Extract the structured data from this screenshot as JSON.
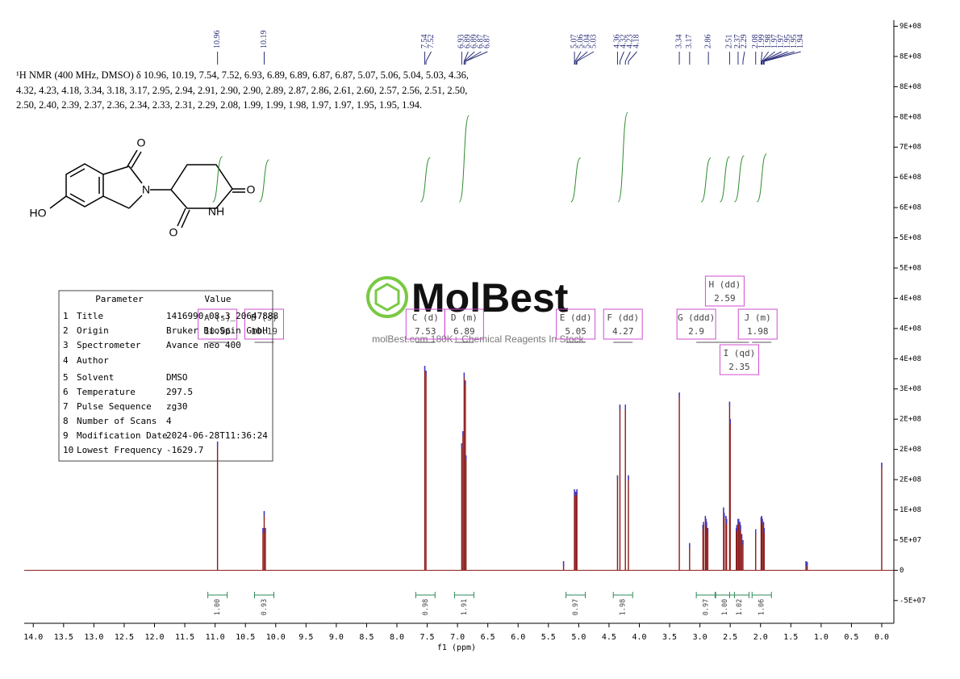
{
  "chart_data": {
    "type": "nmr",
    "header": "¹H NMR (400 MHz, DMSO) δ 10.96, 10.19, 7.54, 7.52, 6.93, 6.89, 6.89, 6.87, 6.87, 5.07, 5.06, 5.04, 5.03, 4.36, 4.32, 4.23, 4.18, 3.34, 3.18, 3.17, 2.95, 2.94, 2.91, 2.90, 2.90, 2.89, 2.87, 2.86, 2.61, 2.60, 2.57, 2.56, 2.51, 2.50, 2.50, 2.40, 2.39, 2.37, 2.36, 2.34, 2.33, 2.31, 2.29, 2.08, 1.99, 1.99, 1.98, 1.97, 1.97, 1.95, 1.95, 1.94.",
    "xlabel": "f1 (ppm)",
    "xlim": [
      14.15,
      -0.2
    ],
    "xticks": [
      {
        "value": 14,
        "label": "14.0"
      },
      13.5,
      {
        "value": 13,
        "label": "13.0"
      },
      12.5,
      {
        "value": 12,
        "label": "12.0"
      },
      11.5,
      {
        "value": 11,
        "label": "11.0"
      },
      10.5,
      {
        "value": 10,
        "label": "10.0"
      },
      9.5,
      {
        "value": 9,
        "label": "9.0"
      },
      8.5,
      {
        "value": 8,
        "label": "8.0"
      },
      7.5,
      {
        "value": 7,
        "label": "7.0"
      },
      6.5,
      {
        "value": 6,
        "label": "6.0"
      },
      5.5,
      {
        "value": 5,
        "label": "5.0"
      },
      4.5,
      {
        "value": 4,
        "label": "4.0"
      },
      3.5,
      {
        "value": 3,
        "label": "3.0"
      },
      2.5,
      {
        "value": 2,
        "label": "2.0"
      },
      1.5,
      {
        "value": 1,
        "label": "1.0"
      },
      0.5,
      {
        "value": 0,
        "label": "0.0"
      }
    ],
    "ylim": [
      -85000000,
      910000000
    ],
    "yticks": [
      {
        "value": 900000000,
        "label": "9E+08"
      },
      {
        "value": 850000000,
        "label": "8E+08"
      },
      {
        "value": 800000000,
        "label": "8E+08"
      },
      {
        "value": 750000000,
        "label": "8E+08"
      },
      {
        "value": 700000000,
        "label": "7E+08"
      },
      {
        "value": 650000000,
        "label": "6E+08"
      },
      {
        "value": 600000000,
        "label": "6E+08"
      },
      {
        "value": 550000000,
        "label": "5E+08"
      },
      {
        "value": 500000000,
        "label": "5E+08"
      },
      {
        "value": 450000000,
        "label": "4E+08"
      },
      {
        "value": 400000000,
        "label": "4E+08"
      },
      {
        "value": 350000000,
        "label": "4E+08"
      },
      {
        "value": 300000000,
        "label": "3E+08"
      },
      {
        "value": 250000000,
        "label": "2E+08"
      },
      {
        "value": 200000000,
        "label": "2E+08"
      },
      {
        "value": 150000000,
        "label": "2E+08"
      },
      {
        "value": 100000000,
        "label": "1E+08"
      },
      {
        "value": 50000000,
        "label": "5E+07"
      },
      0,
      {
        "value": -50000000,
        "label": "-5E+07"
      }
    ],
    "color": "#8b1a1a",
    "spectrum": {
      "x": [
        10.96,
        10.21,
        10.19,
        10.17,
        7.54,
        7.52,
        6.93,
        6.91,
        6.89,
        6.87,
        6.86,
        5.25,
        5.07,
        5.06,
        5.04,
        5.03,
        4.36,
        4.32,
        4.23,
        4.18,
        3.34,
        3.17,
        2.95,
        2.94,
        2.91,
        2.9,
        2.89,
        2.87,
        2.61,
        2.6,
        2.57,
        2.56,
        2.51,
        2.5,
        2.4,
        2.39,
        2.37,
        2.36,
        2.34,
        2.33,
        2.31,
        2.29,
        2.08,
        1.99,
        1.98,
        1.97,
        1.95,
        1.94,
        1.25,
        1.23,
        0.0
      ],
      "values": [
        213000000,
        70000000,
        98000000,
        70000000,
        338000000,
        330000000,
        210000000,
        230000000,
        327000000,
        314000000,
        190000000,
        15000000,
        134000000,
        130000000,
        130000000,
        134000000,
        157000000,
        274000000,
        274000000,
        157000000,
        294000000,
        45000000,
        75000000,
        80000000,
        90000000,
        85000000,
        80000000,
        70000000,
        104000000,
        95000000,
        90000000,
        85000000,
        279000000,
        250000000,
        70000000,
        75000000,
        85000000,
        85000000,
        80000000,
        75000000,
        60000000,
        50000000,
        68000000,
        88000000,
        90000000,
        85000000,
        80000000,
        70000000,
        15000000,
        14000000,
        178000000
      ]
    },
    "peak_labels": [
      10.96,
      10.19,
      7.54,
      7.52,
      6.93,
      6.89,
      6.89,
      6.87,
      6.87,
      5.07,
      5.06,
      5.04,
      5.03,
      4.36,
      4.32,
      4.23,
      4.18,
      3.34,
      3.17,
      2.86,
      2.51,
      2.37,
      2.29,
      2.08,
      1.99,
      1.98,
      1.97,
      1.97,
      1.95,
      1.95,
      1.94
    ],
    "multiplets": [
      {
        "name": "A (s)",
        "shift": 10.96,
        "integral": 1.0,
        "integral_label": "1.00"
      },
      {
        "name": "B (s)",
        "shift": 10.19,
        "integral": 0.93,
        "integral_label": "0.93"
      },
      {
        "name": "C (d)",
        "shift": 7.53,
        "integral": 0.98,
        "integral_label": "0.98"
      },
      {
        "name": "D (m)",
        "shift": 6.89,
        "integral": 1.91,
        "integral_label": "1.91"
      },
      {
        "name": "E (dd)",
        "shift": 5.05,
        "integral": 0.97,
        "integral_label": "0.97"
      },
      {
        "name": "F (dd)",
        "shift": 4.27,
        "integral": 1.98,
        "integral_label": "1.98"
      },
      {
        "name": "G (ddd)",
        "shift": 2.9,
        "integral": 0.97,
        "integral_label": "0.97"
      },
      {
        "name": "H (dd)",
        "shift": 2.59,
        "integral": 1.0,
        "integral_label": "1.00"
      },
      {
        "name": "I (qd)",
        "shift": 2.35,
        "integral": 1.02,
        "integral_label": "1.02"
      },
      {
        "name": "J (m)",
        "shift": 1.98,
        "integral": 1.06,
        "integral_label": "1.06"
      }
    ],
    "parameters": {
      "headers": [
        "Parameter",
        "Value"
      ],
      "rows": [
        [
          "1",
          "Title",
          "1416990-08-3_20647888"
        ],
        [
          "2",
          "Origin",
          "Bruker BioSpin GmbH"
        ],
        [
          "3",
          "Spectrometer",
          "Avance neo 400"
        ],
        [
          "4",
          "Author"
        ],
        [
          "5",
          "Solvent",
          "DMSO"
        ],
        [
          "6",
          "Temperature",
          "297.5"
        ],
        [
          "7",
          "Pulse Sequence",
          "zg30"
        ],
        [
          "8",
          "Number of Scans",
          "4"
        ],
        [
          "9",
          "Modification Date",
          "2024-06-28T11:36:24"
        ],
        [
          "10",
          "Lowest Frequency",
          "-1629.7"
        ]
      ]
    },
    "structure_labels": [
      "O",
      "N",
      "O",
      "NH",
      "O",
      "HO"
    ],
    "watermark": {
      "logo": "MolBest",
      "tagline": "molBest.com 180K+ Chemical Reagents In Stock."
    }
  }
}
